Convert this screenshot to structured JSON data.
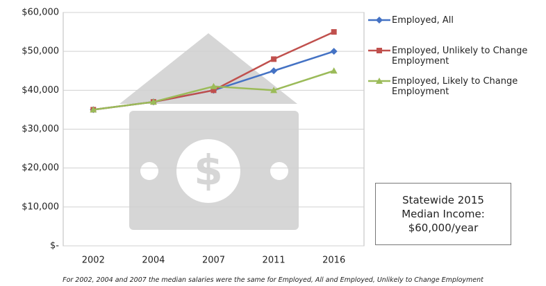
{
  "chart_data": {
    "type": "line",
    "categories": [
      "2002",
      "2004",
      "2007",
      "2011",
      "2016"
    ],
    "series": [
      {
        "name": "Employed, All",
        "color": "#4472c4",
        "marker": "diamond",
        "values": [
          35000,
          37000,
          40000,
          45000,
          50000
        ]
      },
      {
        "name": "Employed, Unlikely to Change Employment",
        "color": "#c0504d",
        "marker": "square",
        "values": [
          35000,
          37000,
          40000,
          48000,
          55000
        ]
      },
      {
        "name": "Employed, Likely to Change Employment",
        "color": "#9bbb59",
        "marker": "triangle",
        "values": [
          35000,
          37000,
          41000,
          40000,
          45000
        ]
      }
    ],
    "ylim": [
      0,
      60000
    ],
    "yticks": [
      {
        "value": 0,
        "label": "$-"
      },
      {
        "value": 10000,
        "label": "$10,000"
      },
      {
        "value": 20000,
        "label": "$20,000"
      },
      {
        "value": 30000,
        "label": "$30,000"
      },
      {
        "value": 40000,
        "label": "$40,000"
      },
      {
        "value": 50000,
        "label": "$50,000"
      },
      {
        "value": 60000,
        "label": "$60,000"
      }
    ],
    "grid": true,
    "legend": "right",
    "annotation": [
      "Statewide 2015",
      "Median Income:",
      "$60,000/year"
    ],
    "footnote": "For 2002, 2004 and 2007 the median salaries were the same for Employed, All and Employed, Unlikely to Change Employment"
  }
}
